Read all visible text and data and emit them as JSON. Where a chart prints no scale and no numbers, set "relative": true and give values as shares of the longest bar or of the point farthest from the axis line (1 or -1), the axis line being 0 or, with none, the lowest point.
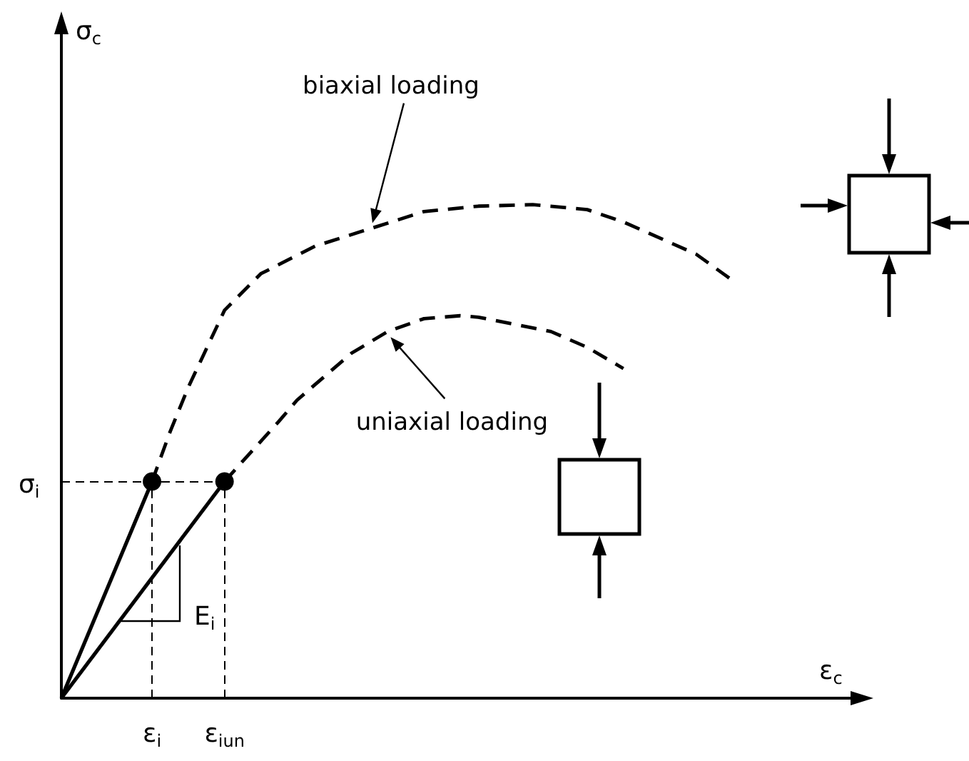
{
  "chart_data": {
    "type": "line",
    "relative": true,
    "xlabel": "ε$_{c}$",
    "categories": [
      null,
      null,
      null,
      null,
      null,
      "ε$_{i}$",
      null,
      null,
      null,
      "ε$_{iun}$",
      null,
      null,
      null,
      null,
      null,
      null,
      null,
      null,
      null,
      null,
      null,
      null,
      null,
      null,
      null,
      null,
      null,
      null,
      null,
      null,
      null,
      null,
      null,
      null,
      null,
      null,
      null,
      null,
      null,
      null,
      null,
      null,
      null,
      null,
      null
    ],
    "annotations": [
      "E$_{i}$",
      "σ$_{i}$",
      "σ$_{c}$",
      "biaxial loading",
      "uniaxial loading"
    ],
    "series": [
      {
        "color": "#000000",
        "line_style": "solid",
        "marker": "none",
        "values": [
          0,
          null,
          null,
          null,
          null,
          0.439,
          null,
          null,
          null,
          null,
          null,
          null,
          null,
          null,
          null,
          null,
          null,
          null,
          null,
          null,
          null,
          null,
          null,
          null,
          null,
          null,
          null,
          null,
          null,
          null,
          null,
          null,
          null,
          null,
          null,
          null,
          null,
          null,
          null,
          null,
          null,
          null,
          null,
          null,
          null
        ]
      },
      {
        "color": "#000000",
        "line_style": "solid",
        "marker": "none",
        "values": [
          0,
          null,
          null,
          null,
          null,
          null,
          null,
          null,
          null,
          0.439,
          null,
          null,
          null,
          null,
          null,
          null,
          null,
          null,
          null,
          null,
          null,
          null,
          null,
          null,
          null,
          null,
          null,
          null,
          null,
          null,
          null,
          null,
          null,
          null,
          null,
          null,
          null,
          null,
          null,
          null,
          null,
          null,
          null,
          null,
          null
        ]
      },
      {
        "color": "#000000",
        "line_style": "dashed",
        "marker": "none",
        "values": [
          null,
          null,
          null,
          null,
          null,
          0.439,
          0.54,
          0.63,
          null,
          0.786,
          null,
          0.86,
          null,
          null,
          0.916,
          null,
          null,
          0.951,
          null,
          null,
          0.986,
          null,
          null,
          0.997,
          null,
          null,
          1,
          null,
          null,
          0.99,
          null,
          0.965,
          null,
          null,
          null,
          0.9,
          null,
          0.847,
          null,
          null,
          null,
          null,
          null,
          null,
          null
        ]
      },
      {
        "color": "#000000",
        "line_style": "dashed",
        "marker": "none",
        "values": [
          null,
          null,
          null,
          null,
          null,
          null,
          null,
          null,
          null,
          0.439,
          0.48,
          null,
          0.561,
          0.604,
          null,
          null,
          0.699,
          null,
          0.743,
          null,
          0.769,
          null,
          0.775,
          0.772,
          null,
          null,
          null,
          0.743,
          null,
          0.711,
          null,
          0.668,
          null,
          null,
          null,
          null,
          null,
          null,
          null,
          null,
          null,
          null,
          null,
          null,
          null
        ]
      },
      {
        "type": "scatter",
        "color": "#000000",
        "marker": "circle",
        "values": [
          null,
          null,
          null,
          null,
          null,
          0.439,
          null,
          null,
          null,
          0.439,
          null,
          null,
          null,
          null,
          null,
          null,
          null,
          null,
          null,
          null,
          null,
          null,
          null,
          null,
          null,
          null,
          null,
          null,
          null,
          null,
          null,
          null,
          null,
          null,
          null,
          null,
          null,
          null,
          null,
          null,
          null,
          null,
          null,
          null,
          null
        ]
      }
    ]
  }
}
